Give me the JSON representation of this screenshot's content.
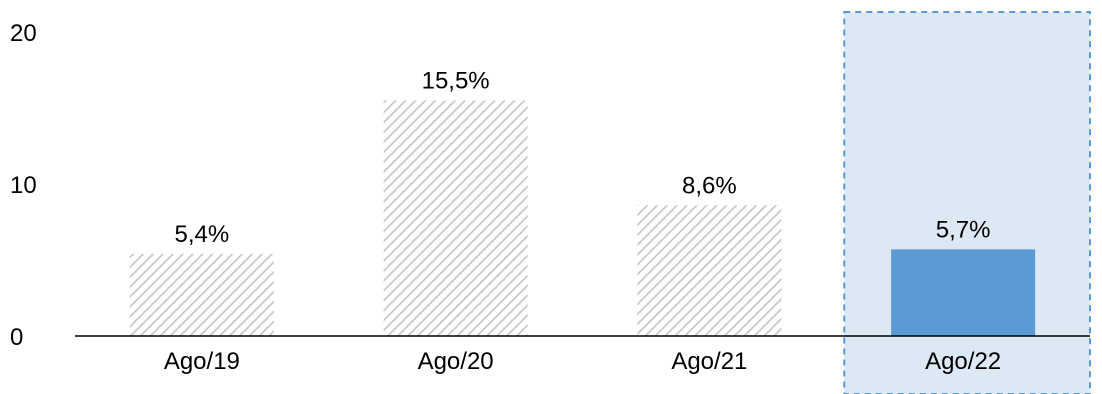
{
  "chart_data": {
    "type": "bar",
    "categories": [
      "Ago/19",
      "Ago/20",
      "Ago/21",
      "Ago/22"
    ],
    "values": [
      5.4,
      15.5,
      8.6,
      5.7
    ],
    "data_labels": [
      "5,4%",
      "15,5%",
      "8,6%",
      "5,7%"
    ],
    "yticks": [
      0,
      10,
      20
    ],
    "ytick_labels": [
      "0",
      "10",
      "20"
    ],
    "ylim": [
      0,
      20
    ],
    "grid": false,
    "legend": "none",
    "title": "",
    "xlabel": "",
    "ylabel": "",
    "highlight_index": 3,
    "colors": {
      "bar_hatch_stripe": "#c8c8c8",
      "bar_hatch_bg": "#ffffff",
      "highlight_bar": "#5b9bd5",
      "highlight_region_fill": "#dde8f5",
      "highlight_region_border": "#5b9bd5",
      "axis": "#000000"
    }
  }
}
